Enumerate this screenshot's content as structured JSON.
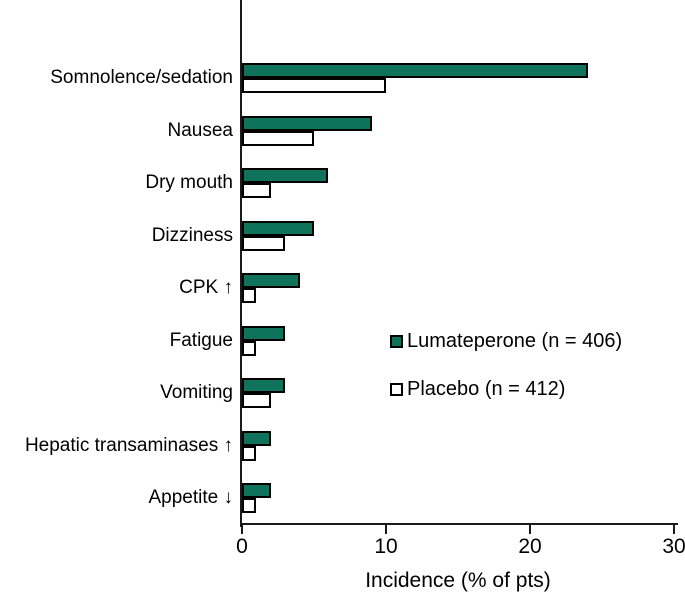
{
  "chart_data": {
    "type": "bar",
    "orientation": "horizontal",
    "title": "",
    "xlabel": "Incidence (% of pts)",
    "ylabel": "",
    "xlim": [
      0,
      30
    ],
    "xticks": [
      0,
      10,
      20,
      30
    ],
    "grid": false,
    "legend_position": "center-right",
    "bar_border_color": "#000000",
    "categories": [
      "Somnolence/sedation",
      "Nausea",
      "Dry mouth",
      "Dizziness",
      "CPK ↑",
      "Fatigue",
      "Vomiting",
      "Hepatic transaminases ↑",
      "Appetite ↓"
    ],
    "series": [
      {
        "name": "Lumateperone (n = 406)",
        "key": "lumateperone",
        "color": "#0f735c",
        "values": [
          24,
          9,
          6,
          5,
          4,
          3,
          3,
          2,
          2
        ]
      },
      {
        "name": "Placebo (n = 412)",
        "key": "placebo",
        "color": "#ffffff",
        "values": [
          10,
          5,
          2,
          3,
          1,
          1,
          2,
          1,
          1
        ]
      }
    ]
  }
}
